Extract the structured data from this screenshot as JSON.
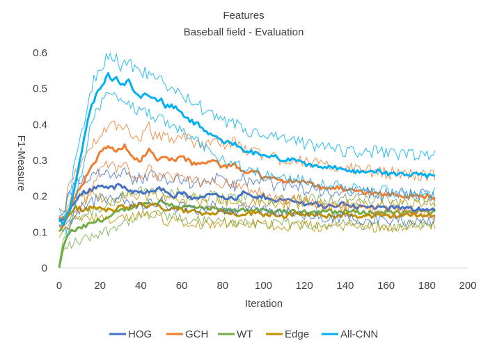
{
  "chart_data": {
    "type": "line",
    "title": "Features",
    "subtitle": "Baseball field - Evaluation",
    "xlabel": "Iteration",
    "ylabel": "F1-Measure",
    "xlim": [
      0,
      200
    ],
    "ylim": [
      0,
      0.6
    ],
    "xticks": [
      "0",
      "20",
      "40",
      "60",
      "80",
      "100",
      "120",
      "140",
      "160",
      "180",
      "200"
    ],
    "yticks": [
      "0",
      "0.1",
      "0.2",
      "0.3",
      "0.4",
      "0.5",
      "0.6"
    ],
    "grid": false,
    "legend_position": "bottom",
    "x_max_iteration": 184,
    "series": [
      {
        "name": "HOG",
        "color": "#4472C4",
        "anchors": [
          [
            0,
            0.13
          ],
          [
            3,
            0.14
          ],
          [
            8,
            0.19
          ],
          [
            12,
            0.21
          ],
          [
            16,
            0.22
          ],
          [
            20,
            0.23
          ],
          [
            26,
            0.225
          ],
          [
            30,
            0.23
          ],
          [
            36,
            0.21
          ],
          [
            40,
            0.21
          ],
          [
            46,
            0.22
          ],
          [
            50,
            0.22
          ],
          [
            56,
            0.2
          ],
          [
            60,
            0.21
          ],
          [
            66,
            0.19
          ],
          [
            70,
            0.2
          ],
          [
            76,
            0.21
          ],
          [
            80,
            0.2
          ],
          [
            86,
            0.19
          ],
          [
            90,
            0.21
          ],
          [
            96,
            0.195
          ],
          [
            100,
            0.2
          ],
          [
            106,
            0.19
          ],
          [
            110,
            0.19
          ],
          [
            116,
            0.185
          ],
          [
            120,
            0.18
          ],
          [
            126,
            0.18
          ],
          [
            130,
            0.17
          ],
          [
            136,
            0.175
          ],
          [
            140,
            0.18
          ],
          [
            146,
            0.17
          ],
          [
            150,
            0.17
          ],
          [
            156,
            0.17
          ],
          [
            160,
            0.165
          ],
          [
            166,
            0.17
          ],
          [
            170,
            0.165
          ],
          [
            176,
            0.165
          ],
          [
            180,
            0.165
          ],
          [
            184,
            0.165
          ]
        ],
        "band_upper": 0.04,
        "band_lower": 0.035
      },
      {
        "name": "GCH",
        "color": "#ED7D31",
        "anchors": [
          [
            0,
            0.14
          ],
          [
            3,
            0.14
          ],
          [
            8,
            0.2
          ],
          [
            12,
            0.24
          ],
          [
            16,
            0.28
          ],
          [
            20,
            0.32
          ],
          [
            24,
            0.34
          ],
          [
            28,
            0.33
          ],
          [
            32,
            0.34
          ],
          [
            36,
            0.31
          ],
          [
            40,
            0.3
          ],
          [
            44,
            0.33
          ],
          [
            48,
            0.3
          ],
          [
            52,
            0.31
          ],
          [
            56,
            0.3
          ],
          [
            60,
            0.31
          ],
          [
            66,
            0.29
          ],
          [
            70,
            0.29
          ],
          [
            76,
            0.3
          ],
          [
            80,
            0.28
          ],
          [
            86,
            0.29
          ],
          [
            90,
            0.27
          ],
          [
            96,
            0.27
          ],
          [
            100,
            0.25
          ],
          [
            106,
            0.25
          ],
          [
            110,
            0.24
          ],
          [
            116,
            0.245
          ],
          [
            120,
            0.24
          ],
          [
            126,
            0.23
          ],
          [
            130,
            0.22
          ],
          [
            136,
            0.225
          ],
          [
            140,
            0.22
          ],
          [
            146,
            0.215
          ],
          [
            150,
            0.21
          ],
          [
            156,
            0.21
          ],
          [
            160,
            0.205
          ],
          [
            166,
            0.205
          ],
          [
            170,
            0.2
          ],
          [
            176,
            0.2
          ],
          [
            180,
            0.2
          ],
          [
            184,
            0.195
          ]
        ],
        "band_upper": 0.06,
        "band_lower": 0.05
      },
      {
        "name": "WT",
        "color": "#70AD47",
        "anchors": [
          [
            0,
            0.0
          ],
          [
            2,
            0.06
          ],
          [
            5,
            0.1
          ],
          [
            10,
            0.11
          ],
          [
            14,
            0.12
          ],
          [
            18,
            0.13
          ],
          [
            24,
            0.14
          ],
          [
            30,
            0.16
          ],
          [
            36,
            0.17
          ],
          [
            40,
            0.18
          ],
          [
            46,
            0.18
          ],
          [
            50,
            0.185
          ],
          [
            56,
            0.175
          ],
          [
            60,
            0.17
          ],
          [
            66,
            0.17
          ],
          [
            70,
            0.165
          ],
          [
            76,
            0.165
          ],
          [
            80,
            0.16
          ],
          [
            86,
            0.16
          ],
          [
            90,
            0.165
          ],
          [
            96,
            0.16
          ],
          [
            100,
            0.16
          ],
          [
            106,
            0.155
          ],
          [
            110,
            0.16
          ],
          [
            116,
            0.155
          ],
          [
            120,
            0.16
          ],
          [
            126,
            0.155
          ],
          [
            130,
            0.16
          ],
          [
            136,
            0.155
          ],
          [
            140,
            0.16
          ],
          [
            146,
            0.155
          ],
          [
            150,
            0.155
          ],
          [
            156,
            0.155
          ],
          [
            160,
            0.155
          ],
          [
            166,
            0.155
          ],
          [
            170,
            0.155
          ],
          [
            176,
            0.16
          ],
          [
            180,
            0.155
          ],
          [
            184,
            0.155
          ]
        ],
        "band_upper": 0.035,
        "band_lower": 0.035
      },
      {
        "name": "Edge",
        "color": "#BF9000",
        "anchors": [
          [
            0,
            0.1
          ],
          [
            2,
            0.12
          ],
          [
            5,
            0.15
          ],
          [
            8,
            0.17
          ],
          [
            12,
            0.16
          ],
          [
            16,
            0.17
          ],
          [
            20,
            0.165
          ],
          [
            26,
            0.16
          ],
          [
            30,
            0.17
          ],
          [
            36,
            0.17
          ],
          [
            40,
            0.18
          ],
          [
            44,
            0.17
          ],
          [
            48,
            0.18
          ],
          [
            52,
            0.16
          ],
          [
            56,
            0.17
          ],
          [
            60,
            0.16
          ],
          [
            66,
            0.16
          ],
          [
            70,
            0.15
          ],
          [
            76,
            0.155
          ],
          [
            80,
            0.16
          ],
          [
            86,
            0.15
          ],
          [
            90,
            0.15
          ],
          [
            96,
            0.155
          ],
          [
            100,
            0.15
          ],
          [
            106,
            0.15
          ],
          [
            110,
            0.145
          ],
          [
            116,
            0.15
          ],
          [
            120,
            0.15
          ],
          [
            126,
            0.145
          ],
          [
            130,
            0.145
          ],
          [
            136,
            0.145
          ],
          [
            140,
            0.15
          ],
          [
            146,
            0.145
          ],
          [
            150,
            0.145
          ],
          [
            156,
            0.145
          ],
          [
            160,
            0.145
          ],
          [
            166,
            0.145
          ],
          [
            170,
            0.15
          ],
          [
            176,
            0.145
          ],
          [
            180,
            0.15
          ],
          [
            184,
            0.145
          ]
        ],
        "band_upper": 0.03,
        "band_lower": 0.03
      },
      {
        "name": "All-CNN",
        "color": "#00B0F0",
        "anchors": [
          [
            0,
            0.14
          ],
          [
            2,
            0.12
          ],
          [
            5,
            0.16
          ],
          [
            8,
            0.24
          ],
          [
            11,
            0.32
          ],
          [
            13,
            0.38
          ],
          [
            15,
            0.44
          ],
          [
            18,
            0.48
          ],
          [
            20,
            0.5
          ],
          [
            22,
            0.52
          ],
          [
            24,
            0.54
          ],
          [
            26,
            0.52
          ],
          [
            28,
            0.53
          ],
          [
            30,
            0.51
          ],
          [
            34,
            0.52
          ],
          [
            36,
            0.5
          ],
          [
            40,
            0.48
          ],
          [
            42,
            0.49
          ],
          [
            46,
            0.47
          ],
          [
            50,
            0.47
          ],
          [
            52,
            0.45
          ],
          [
            56,
            0.45
          ],
          [
            60,
            0.43
          ],
          [
            64,
            0.41
          ],
          [
            68,
            0.4
          ],
          [
            70,
            0.39
          ],
          [
            74,
            0.37
          ],
          [
            78,
            0.36
          ],
          [
            80,
            0.35
          ],
          [
            84,
            0.35
          ],
          [
            88,
            0.34
          ],
          [
            90,
            0.33
          ],
          [
            96,
            0.32
          ],
          [
            100,
            0.31
          ],
          [
            106,
            0.31
          ],
          [
            110,
            0.3
          ],
          [
            116,
            0.3
          ],
          [
            120,
            0.29
          ],
          [
            126,
            0.285
          ],
          [
            130,
            0.28
          ],
          [
            136,
            0.28
          ],
          [
            140,
            0.27
          ],
          [
            146,
            0.27
          ],
          [
            150,
            0.27
          ],
          [
            156,
            0.27
          ],
          [
            160,
            0.265
          ],
          [
            166,
            0.26
          ],
          [
            170,
            0.26
          ],
          [
            176,
            0.26
          ],
          [
            180,
            0.255
          ],
          [
            184,
            0.26
          ]
        ],
        "band_upper": 0.055,
        "band_lower": 0.05
      }
    ]
  }
}
